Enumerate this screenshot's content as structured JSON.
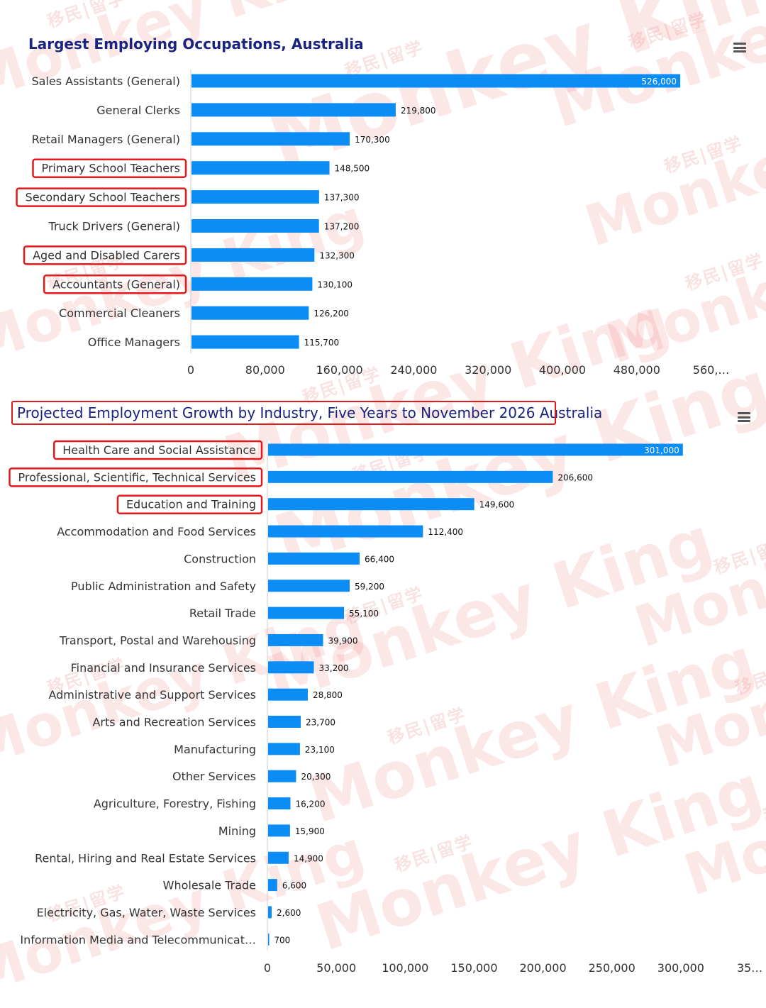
{
  "watermark_text": {
    "brand": "Monkey King",
    "cn": "移民|留学"
  },
  "charts": [
    {
      "title": "Largest Employing Occupations, Australia",
      "menu_icon": "hamburger-menu-icon",
      "highlight_color": "#e3191c",
      "highlighted_categories": [
        "Primary School Teachers",
        "Secondary School Teachers",
        "Aged and Disabled Carers",
        "Accountants (General)"
      ],
      "x_ticks": [
        "0",
        "80,000",
        "160,000",
        "240,000",
        "320,000",
        "400,000",
        "480,000",
        "560,…"
      ],
      "value_labels": [
        "526,000",
        "219,800",
        "170,300",
        "148,500",
        "137,300",
        "137,200",
        "132,300",
        "130,100",
        "126,200",
        "115,700"
      ]
    },
    {
      "title_main": "Projected Employment Growth by Industry, Five Years to November 2026",
      "title_suffix": " Australia",
      "menu_icon": "hamburger-menu-icon",
      "highlight_color": "#e3191c",
      "highlighted_categories": [
        "Health Care and Social Assistance",
        "Professional, Scientific, Technical Services",
        "Education and Training"
      ],
      "x_ticks": [
        "0",
        "50,000",
        "100,000",
        "150,000",
        "200,000",
        "250,000",
        "300,000",
        "35…"
      ],
      "value_labels": [
        "301,000",
        "206,600",
        "149,600",
        "112,400",
        "66,400",
        "59,200",
        "55,100",
        "39,900",
        "33,200",
        "28,800",
        "23,700",
        "23,100",
        "20,300",
        "16,200",
        "15,900",
        "14,900",
        "6,600",
        "2,600",
        "700"
      ]
    }
  ],
  "chart_data": [
    {
      "type": "bar",
      "orientation": "horizontal",
      "title": "Largest Employing Occupations, Australia",
      "bar_color": "#0c8cf5",
      "categories": [
        "Sales Assistants (General)",
        "General Clerks",
        "Retail Managers (General)",
        "Primary School Teachers",
        "Secondary School Teachers",
        "Truck Drivers (General)",
        "Aged and Disabled Carers",
        "Accountants (General)",
        "Commercial Cleaners",
        "Office Managers"
      ],
      "values": [
        526000,
        219800,
        170300,
        148500,
        137300,
        137200,
        132300,
        130100,
        126200,
        115700
      ],
      "xlim": [
        0,
        600000
      ],
      "xticks": [
        0,
        80000,
        160000,
        240000,
        320000,
        400000,
        480000,
        560000
      ],
      "grid": false,
      "xlabel": "",
      "ylabel": ""
    },
    {
      "type": "bar",
      "orientation": "horizontal",
      "title": "Projected Employment Growth by Industry, Five Years to November 2026 Australia",
      "bar_color": "#0c8cf5",
      "categories": [
        "Health Care and Social Assistance",
        "Professional, Scientific, Technical Services",
        "Education and Training",
        "Accommodation and Food Services",
        "Construction",
        "Public Administration and Safety",
        "Retail Trade",
        "Transport, Postal and Warehousing",
        "Financial and Insurance Services",
        "Administrative and Support Services",
        "Arts and Recreation Services",
        "Manufacturing",
        "Other Services",
        "Agriculture, Forestry, Fishing",
        "Mining",
        "Rental, Hiring and Real Estate Services",
        "Wholesale Trade",
        "Electricity, Gas, Water, Waste Services",
        "Information Media and Telecommunicat…"
      ],
      "values": [
        301000,
        206600,
        149600,
        112400,
        66400,
        59200,
        55100,
        39900,
        33200,
        28800,
        23700,
        23100,
        20300,
        16200,
        15900,
        14900,
        6600,
        2600,
        700
      ],
      "xlim": [
        0,
        350000
      ],
      "xticks": [
        0,
        50000,
        100000,
        150000,
        200000,
        250000,
        300000,
        350000
      ],
      "grid": false,
      "xlabel": "",
      "ylabel": ""
    }
  ]
}
